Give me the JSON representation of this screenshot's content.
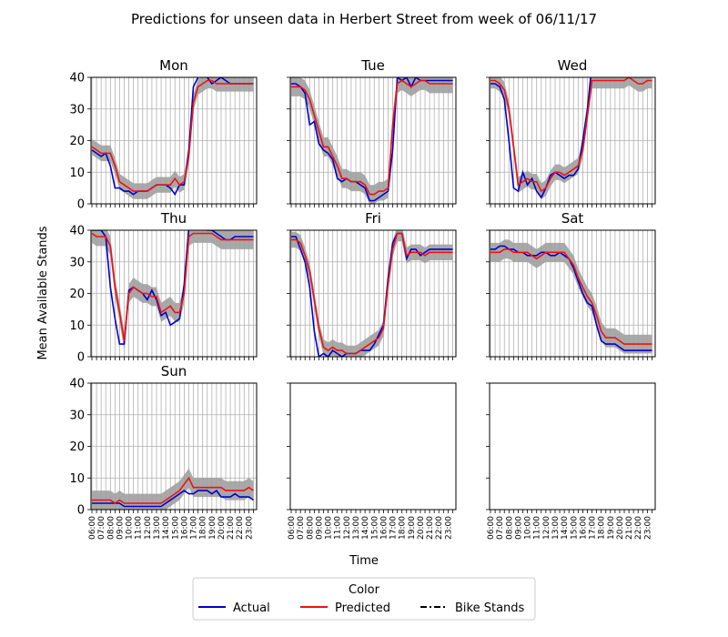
{
  "chart_data": {
    "type": "line",
    "title": "Predictions for unseen data in Herbert Street from week of 06/11/17",
    "xlabel": "Time",
    "ylabel": "Mean Available Stands",
    "ylim": [
      0,
      40
    ],
    "yticks": [
      0,
      10,
      20,
      30,
      40
    ],
    "x_tick_labels": [
      "06:00",
      "07:00",
      "08:00",
      "09:00",
      "10:00",
      "11:00",
      "12:00",
      "13:00",
      "14:00",
      "15:00",
      "16:00",
      "17:00",
      "18:00",
      "19:00",
      "20:00",
      "21:00",
      "22:00",
      "23:00"
    ],
    "grid": true,
    "legend": {
      "title": "Color",
      "placement": "bottom-center",
      "entries": [
        {
          "label": "Actual",
          "color": "#0000cc",
          "style": "solid"
        },
        {
          "label": "Predicted",
          "color": "#ee1111",
          "style": "solid"
        },
        {
          "label": "Bike Stands",
          "color": "#000000",
          "style": "dashdot"
        }
      ]
    },
    "band_color": "#a0a0a0",
    "x_hours": [
      6,
      6.5,
      7,
      7.5,
      8,
      8.5,
      9,
      9.5,
      10,
      10.5,
      11,
      11.5,
      12,
      12.5,
      13,
      13.5,
      14,
      14.5,
      15,
      15.5,
      16,
      16.5,
      17,
      17.5,
      18,
      18.5,
      19,
      19.5,
      20,
      20.5,
      21,
      21.5,
      22,
      22.5,
      23,
      23.5
    ],
    "panels": [
      {
        "name": "Mon",
        "actual": [
          17,
          16,
          15,
          16,
          12,
          5,
          5,
          4,
          4,
          3,
          4,
          4,
          4,
          5,
          6,
          6,
          6,
          5,
          3,
          6,
          6,
          17,
          37,
          40,
          41,
          40,
          38,
          39,
          40,
          39,
          38,
          38,
          38,
          38,
          38,
          38
        ],
        "predicted": [
          18,
          17,
          16,
          16,
          16,
          12,
          7,
          6,
          5,
          4,
          4,
          4,
          4,
          5,
          6,
          6,
          6,
          6,
          8,
          6,
          7,
          15,
          32,
          37,
          38,
          39,
          39,
          38,
          38,
          38,
          38,
          38,
          38,
          38,
          38,
          38
        ]
      },
      {
        "name": "Tue",
        "actual": [
          38,
          38,
          37,
          35,
          25,
          26,
          19,
          17,
          16,
          14,
          8,
          7,
          8,
          7,
          7,
          6,
          5,
          1,
          1,
          2,
          3,
          4,
          17,
          40,
          39,
          40,
          37,
          40,
          39,
          39,
          39,
          39,
          39,
          39,
          39,
          39
        ],
        "predicted": [
          37,
          37,
          37,
          36,
          33,
          28,
          23,
          18,
          18,
          15,
          12,
          8,
          8,
          7,
          7,
          7,
          6,
          3,
          3,
          4,
          4,
          5,
          25,
          38,
          39,
          38,
          37,
          38,
          39,
          39,
          38,
          38,
          38,
          38,
          38,
          38
        ],
        "band_half_width": 3
      },
      {
        "name": "Wed",
        "actual": [
          38,
          38,
          37,
          33,
          20,
          5,
          4,
          10,
          6,
          8,
          4,
          2,
          5,
          9,
          10,
          9,
          8,
          9,
          9,
          11,
          20,
          30,
          44,
          44,
          44,
          44,
          44,
          44,
          44,
          44,
          44,
          44,
          44,
          44,
          44,
          44
        ],
        "predicted": [
          39,
          39,
          38,
          36,
          30,
          18,
          6,
          7,
          8,
          7,
          7,
          4,
          5,
          8,
          10,
          10,
          9,
          10,
          11,
          12,
          17,
          28,
          39,
          39,
          39,
          39,
          39,
          39,
          39,
          39,
          40,
          39,
          38,
          38,
          39,
          39
        ]
      },
      {
        "name": "Thu",
        "actual": [
          40,
          40,
          40,
          38,
          22,
          12,
          4,
          4,
          21,
          22,
          21,
          20,
          18,
          21,
          18,
          13,
          14,
          10,
          11,
          12,
          23,
          41,
          41,
          41,
          41,
          40,
          40,
          39,
          38,
          37,
          37,
          38,
          38,
          38,
          38,
          38
        ],
        "predicted": [
          39,
          38,
          38,
          38,
          35,
          22,
          14,
          5,
          20,
          22,
          21,
          20,
          20,
          19,
          19,
          14,
          15,
          16,
          14,
          14,
          20,
          38,
          39,
          39,
          39,
          39,
          39,
          38,
          37,
          37,
          37,
          37,
          37,
          37,
          37,
          37
        ],
        "band_half_width": 3
      },
      {
        "name": "Fri",
        "actual": [
          38,
          38,
          34,
          30,
          22,
          8,
          0,
          1,
          0,
          2,
          1,
          0,
          1,
          1,
          1,
          2,
          2,
          2,
          4,
          7,
          10,
          25,
          36,
          39,
          39,
          31,
          34,
          34,
          32,
          33,
          34,
          34,
          34,
          34,
          34,
          34
        ],
        "predicted": [
          37,
          37,
          36,
          32,
          27,
          18,
          9,
          3,
          2,
          3,
          2,
          2,
          1,
          1,
          1,
          2,
          3,
          4,
          5,
          6,
          9,
          23,
          34,
          39,
          39,
          32,
          33,
          33,
          33,
          32,
          33,
          33,
          33,
          33,
          33,
          33
        ]
      },
      {
        "name": "Sat",
        "actual": [
          34,
          34,
          35,
          35,
          34,
          34,
          33,
          33,
          32,
          32,
          32,
          33,
          33,
          32,
          32,
          33,
          32,
          31,
          28,
          24,
          20,
          17,
          16,
          10,
          5,
          4,
          4,
          4,
          3,
          2,
          2,
          2,
          2,
          2,
          2,
          2
        ],
        "predicted": [
          33,
          33,
          33,
          34,
          34,
          33,
          33,
          33,
          33,
          32,
          31,
          32,
          33,
          33,
          33,
          33,
          33,
          31,
          29,
          25,
          22,
          19,
          17,
          13,
          8,
          6,
          6,
          6,
          5,
          4,
          4,
          4,
          4,
          4,
          4,
          4
        ],
        "band_half_width": 3
      },
      {
        "name": "Sun",
        "actual": [
          2,
          2,
          2,
          2,
          2,
          2,
          2,
          1,
          1,
          1,
          1,
          1,
          1,
          1,
          1,
          1,
          2,
          3,
          4,
          5,
          6,
          5,
          5,
          6,
          6,
          6,
          5,
          6,
          4,
          4,
          4,
          5,
          4,
          4,
          4,
          3
        ],
        "predicted": [
          3,
          3,
          3,
          3,
          3,
          2,
          3,
          2,
          2,
          2,
          2,
          2,
          2,
          2,
          2,
          2,
          3,
          4,
          5,
          6,
          8,
          10,
          7,
          7,
          7,
          7,
          7,
          7,
          7,
          6,
          6,
          6,
          6,
          6,
          7,
          6
        ],
        "band_half_width": 3
      },
      {
        "name": "",
        "empty": true
      },
      {
        "name": "",
        "empty": true
      }
    ]
  }
}
